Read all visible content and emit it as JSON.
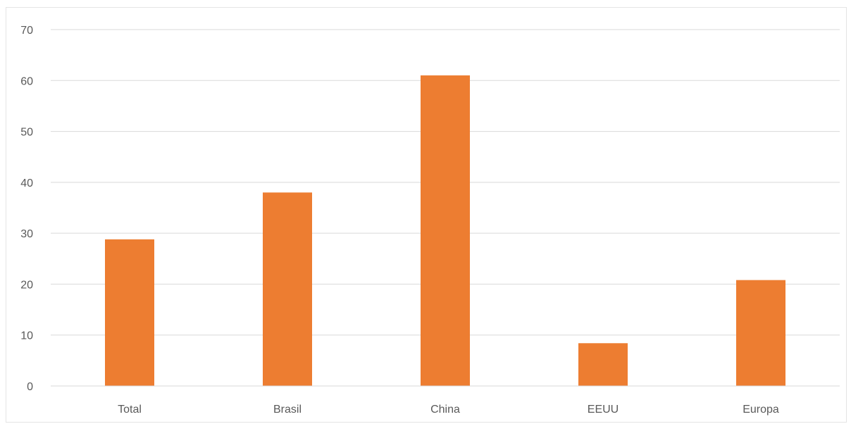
{
  "chart_data": {
    "type": "bar",
    "title": "",
    "xlabel": "",
    "ylabel": "",
    "categories": [
      "Total",
      "Brasil",
      "China",
      "EEUU",
      "Europa"
    ],
    "values": [
      28.8,
      38.0,
      61.0,
      8.4,
      20.8
    ],
    "ylim": [
      0,
      70
    ],
    "yticks": [
      "0",
      "10",
      "20",
      "30",
      "40",
      "50",
      "60",
      "70"
    ],
    "grid": true,
    "legend": "none",
    "bar_color": "#ED7D31"
  }
}
